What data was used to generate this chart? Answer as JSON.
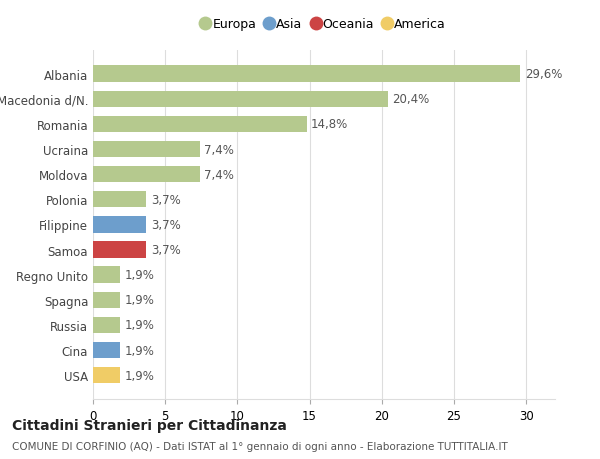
{
  "categories": [
    "Albania",
    "Macedonia d/N.",
    "Romania",
    "Ucraina",
    "Moldova",
    "Polonia",
    "Filippine",
    "Samoa",
    "Regno Unito",
    "Spagna",
    "Russia",
    "Cina",
    "USA"
  ],
  "values": [
    29.6,
    20.4,
    14.8,
    7.4,
    7.4,
    3.7,
    3.7,
    3.7,
    1.9,
    1.9,
    1.9,
    1.9,
    1.9
  ],
  "labels": [
    "29,6%",
    "20,4%",
    "14,8%",
    "7,4%",
    "7,4%",
    "3,7%",
    "3,7%",
    "3,7%",
    "1,9%",
    "1,9%",
    "1,9%",
    "1,9%",
    "1,9%"
  ],
  "bar_colors": [
    "#b5c98e",
    "#b5c98e",
    "#b5c98e",
    "#b5c98e",
    "#b5c98e",
    "#b5c98e",
    "#6d9ecc",
    "#cc4444",
    "#b5c98e",
    "#b5c98e",
    "#b5c98e",
    "#6d9ecc",
    "#f0cc66"
  ],
  "legend_labels": [
    "Europa",
    "Asia",
    "Oceania",
    "America"
  ],
  "legend_colors": [
    "#b5c98e",
    "#6d9ecc",
    "#cc4444",
    "#f0cc66"
  ],
  "xlim": [
    0,
    32
  ],
  "xticks": [
    0,
    5,
    10,
    15,
    20,
    25,
    30
  ],
  "title": "Cittadini Stranieri per Cittadinanza",
  "subtitle": "COMUNE DI CORFINIO (AQ) - Dati ISTAT al 1° gennaio di ogni anno - Elaborazione TUTTITALIA.IT",
  "background_color": "#ffffff",
  "grid_color": "#dddddd",
  "label_color": "#555555",
  "bar_height": 0.65,
  "title_fontsize": 10,
  "subtitle_fontsize": 7.5,
  "tick_fontsize": 8.5,
  "label_fontsize": 8.5,
  "legend_fontsize": 9
}
